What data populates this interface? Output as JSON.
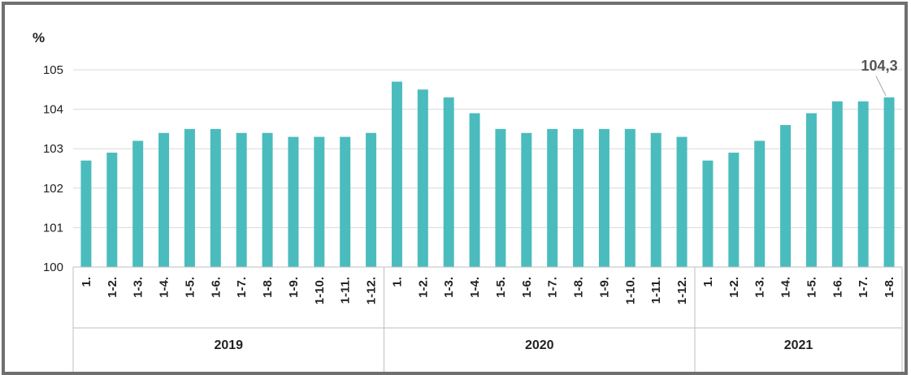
{
  "chart_data": {
    "type": "bar",
    "ylabel": "%",
    "ylim": [
      100,
      105
    ],
    "yticks": [
      100,
      101,
      102,
      103,
      104,
      105
    ],
    "grid": true,
    "colors": {
      "bar": "#4bbcbd",
      "grid": "#d9d9d9",
      "axis": "#bfbfbf"
    },
    "groups": [
      {
        "label": "2019",
        "categories": [
          "1.",
          "1-2.",
          "1-3.",
          "1-4.",
          "1-5.",
          "1-6.",
          "1-7.",
          "1-8.",
          "1-9.",
          "1-10.",
          "1-11.",
          "1-12."
        ]
      },
      {
        "label": "2020",
        "categories": [
          "1.",
          "1-2.",
          "1-3.",
          "1-4.",
          "1-5.",
          "1-6.",
          "1-7.",
          "1-8.",
          "1-9.",
          "1-10.",
          "1-11.",
          "1-12."
        ]
      },
      {
        "label": "2021",
        "categories": [
          "1.",
          "1-2.",
          "1-3.",
          "1-4.",
          "1-5.",
          "1-6.",
          "1-7.",
          "1-8."
        ]
      }
    ],
    "values": [
      102.7,
      102.9,
      103.2,
      103.4,
      103.5,
      103.5,
      103.4,
      103.4,
      103.3,
      103.3,
      103.3,
      103.4,
      104.7,
      104.5,
      104.3,
      103.9,
      103.5,
      103.4,
      103.5,
      103.5,
      103.5,
      103.5,
      103.4,
      103.3,
      102.7,
      102.9,
      103.2,
      103.6,
      103.9,
      104.2,
      104.2,
      104.3
    ],
    "annotation": {
      "text": "104,3",
      "index": 31
    }
  }
}
